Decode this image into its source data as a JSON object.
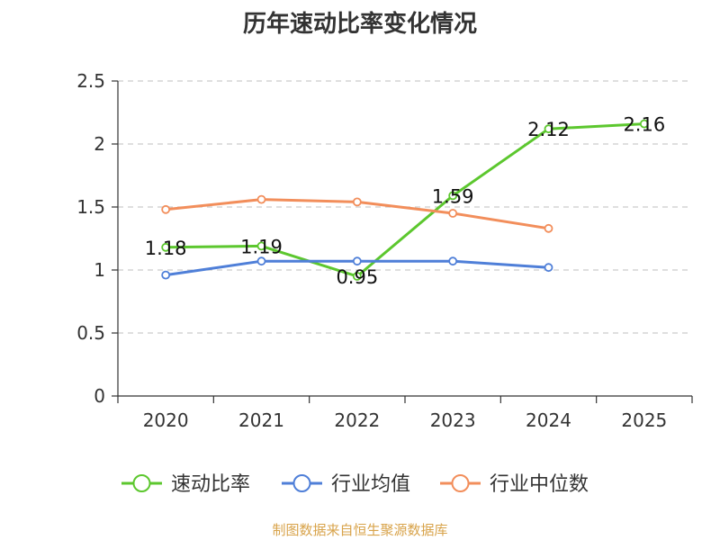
{
  "chart_data": {
    "type": "line",
    "title": "历年速动比率变化情况",
    "categories": [
      "2020",
      "2021",
      "2022",
      "2023",
      "2024",
      "2025"
    ],
    "ylim": [
      0,
      2.5
    ],
    "yticks": [
      "0",
      "0.5",
      "1",
      "1.5",
      "2",
      "2.5"
    ],
    "xlabel": "",
    "ylabel": "",
    "grid": true,
    "legend_position": "bottom",
    "series": [
      {
        "name": "速动比率",
        "color": "#5cc72e",
        "values": [
          1.18,
          1.19,
          0.95,
          1.59,
          2.12,
          2.16
        ],
        "labels": [
          "1.18",
          "1.19",
          "0.95",
          "1.59",
          "2.12",
          "2.16"
        ]
      },
      {
        "name": "行业均值",
        "color": "#4f7fd8",
        "values": [
          0.96,
          1.07,
          1.07,
          1.07,
          1.02,
          null
        ]
      },
      {
        "name": "行业中位数",
        "color": "#f28e5b",
        "values": [
          1.48,
          1.56,
          1.54,
          1.45,
          1.33,
          null
        ]
      }
    ]
  },
  "source_note": "制图数据来自恒生聚源数据库"
}
